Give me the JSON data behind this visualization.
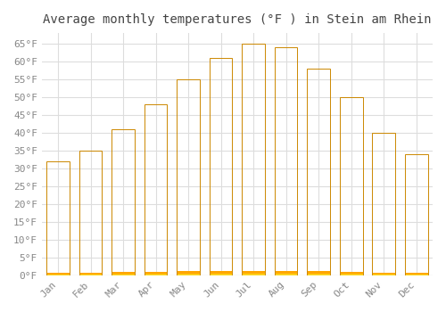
{
  "title": "Average monthly temperatures (°F ) in Stein am Rhein",
  "months": [
    "Jan",
    "Feb",
    "Mar",
    "Apr",
    "May",
    "Jun",
    "Jul",
    "Aug",
    "Sep",
    "Oct",
    "Nov",
    "Dec"
  ],
  "values": [
    32,
    35,
    41,
    48,
    55,
    61,
    65,
    64,
    58,
    50,
    40,
    34
  ],
  "bar_color_top": "#FFAA00",
  "bar_color_bottom": "#FFD060",
  "bar_edge_color": "#CC8800",
  "background_color": "#FFFFFF",
  "plot_bg_color": "#FFFFFF",
  "grid_color": "#DDDDDD",
  "ylim": [
    0,
    68
  ],
  "yticks": [
    0,
    5,
    10,
    15,
    20,
    25,
    30,
    35,
    40,
    45,
    50,
    55,
    60,
    65
  ],
  "tick_label_color": "#888888",
  "title_color": "#444444",
  "title_fontsize": 10,
  "tick_fontsize": 8,
  "font_family": "monospace"
}
